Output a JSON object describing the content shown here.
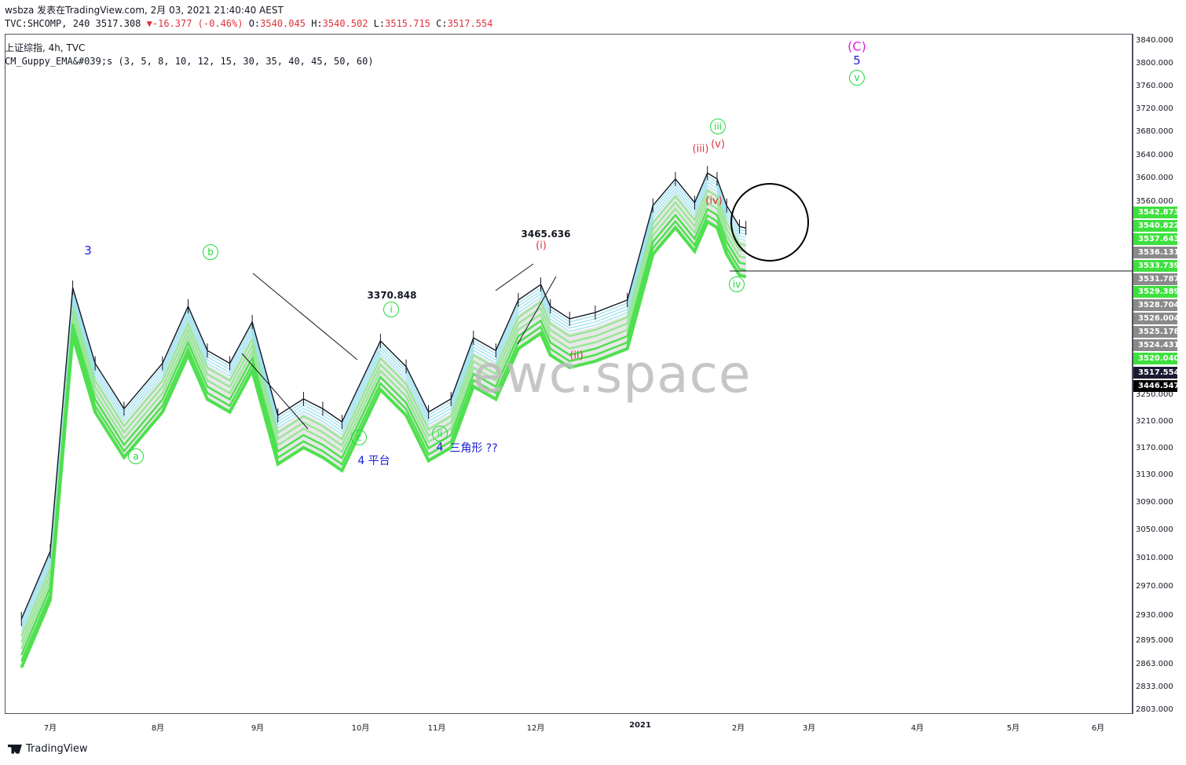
{
  "header": {
    "user": "wsbza",
    "published": "发表在TradingView.com, 2月 03, 2021 21:40:40 AEST",
    "symbol": "TVC:SHCOMP, 240",
    "last": "3517.308",
    "change": "-16.377 (-0.46%)",
    "o_label": "O:",
    "o_val": "3540.045",
    "h_label": "H:",
    "h_val": "3540.502",
    "l_label": "L:",
    "l_val": "3515.715",
    "c_label": "C:",
    "c_val": "3517.554",
    "title": "上证综指, 4h, TVC",
    "indicator": "CM_Guppy_EMA&#039;s (3, 5, 8, 10, 12, 15, 30, 35, 40, 45, 50, 60)"
  },
  "watermark": "ewc.space",
  "brand": "TradingView",
  "chart_data": {
    "type": "line",
    "price_ticks": [
      "3840.000",
      "3800.000",
      "3760.000",
      "3720.000",
      "3680.000",
      "3640.000",
      "3600.000",
      "3560.000",
      "3250.000",
      "3210.000",
      "3170.000",
      "3130.000",
      "3090.000",
      "3050.000",
      "3010.000",
      "2970.000",
      "2930.000",
      "2895.000",
      "2863.000",
      "2833.000",
      "2803.000"
    ],
    "price_tags": [
      {
        "text": "3542.873",
        "bg": "#3ee03e",
        "fg": "#ffffff"
      },
      {
        "text": "3540.822",
        "bg": "#3ee03e",
        "fg": "#ffffff"
      },
      {
        "text": "3537.643",
        "bg": "#3ee03e",
        "fg": "#ffffff"
      },
      {
        "text": "3536.131",
        "bg": "#8a8a8a",
        "fg": "#ffffff"
      },
      {
        "text": "3533.739",
        "bg": "#3ee03e",
        "fg": "#ffffff"
      },
      {
        "text": "3531.787",
        "bg": "#8a8a8a",
        "fg": "#ffffff"
      },
      {
        "text": "3529.389",
        "bg": "#3ee03e",
        "fg": "#ffffff"
      },
      {
        "text": "3528.704",
        "bg": "#8a8a8a",
        "fg": "#ffffff"
      },
      {
        "text": "3526.004",
        "bg": "#8a8a8a",
        "fg": "#ffffff"
      },
      {
        "text": "3525.178",
        "bg": "#8a8a8a",
        "fg": "#ffffff"
      },
      {
        "text": "3524.431",
        "bg": "#8a8a8a",
        "fg": "#ffffff"
      },
      {
        "text": "3520.040",
        "bg": "#3ee03e",
        "fg": "#ffffff"
      },
      {
        "text": "3517.554",
        "bg": "#1b1a33",
        "fg": "#ffffff"
      },
      {
        "text": "3446.547",
        "bg": "#000000",
        "fg": "#ffffff"
      }
    ],
    "months": [
      "7月",
      "8月",
      "9月",
      "10月",
      "11月",
      "12月",
      "2021",
      "2月",
      "3月",
      "4月",
      "5月",
      "6月"
    ],
    "x": [
      "2020-06-22",
      "2020-07-01",
      "2020-07-08",
      "2020-07-15",
      "2020-07-24",
      "2020-08-05",
      "2020-08-13",
      "2020-08-19",
      "2020-08-26",
      "2020-09-02",
      "2020-09-10",
      "2020-09-18",
      "2020-09-24",
      "2020-09-30",
      "2020-10-12",
      "2020-10-20",
      "2020-10-27",
      "2020-11-03",
      "2020-11-10",
      "2020-11-17",
      "2020-11-24",
      "2020-12-01",
      "2020-12-04",
      "2020-12-10",
      "2020-12-18",
      "2020-12-28",
      "2021-01-05",
      "2021-01-12",
      "2021-01-18",
      "2021-01-22",
      "2021-01-25",
      "2021-01-28",
      "2021-02-01",
      "2021-02-03"
    ],
    "close": [
      2925,
      3020,
      3420,
      3300,
      3230,
      3300,
      3390,
      3320,
      3300,
      3365,
      3220,
      3245,
      3230,
      3210,
      3335,
      3295,
      3225,
      3245,
      3340,
      3320,
      3400,
      3425,
      3390,
      3370,
      3380,
      3400,
      3555,
      3600,
      3560,
      3610,
      3600,
      3555,
      3520,
      3517.554
    ],
    "annotations": {
      "wave3": "3",
      "a": "a",
      "b": "b",
      "c": "c",
      "i": "i",
      "ii": "ii",
      "iii": "iii",
      "iv": "iv",
      "v": "v",
      "r_i": "(i)",
      "r_ii": "(ii)",
      "r_iii": "(iii)",
      "r_iv": "(iv)",
      "r_v": "(v)",
      "C": "(C)",
      "five": "5",
      "p1": "3370.848",
      "p2": "3465.636",
      "flat": "4 平台",
      "tri_num": "4",
      "tri": "三角形 ??"
    }
  }
}
